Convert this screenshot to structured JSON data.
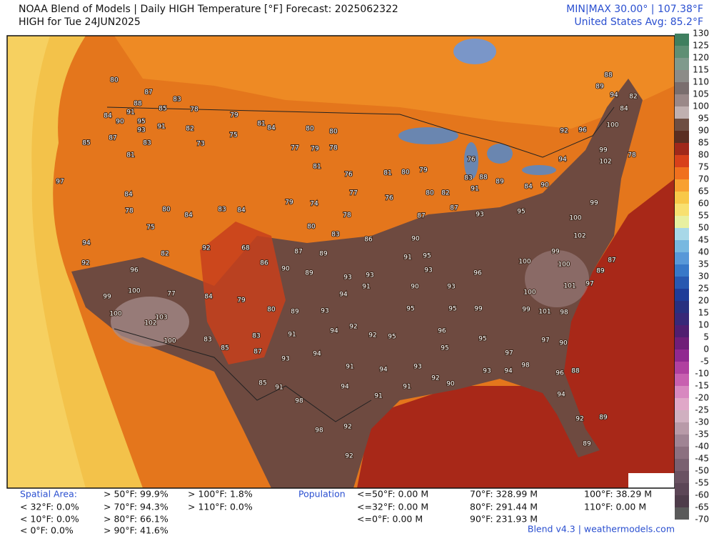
{
  "header": {
    "title": "NOAA Blend of Models | Daily HIGH Temperature [°F] Forecast: 2025062322",
    "subtitle": "HIGH for Tue 24JUN2025",
    "minmax": "MIN|MAX 30.00° | 107.38°F",
    "average": "United States Avg: 85.2°F"
  },
  "colorbar": {
    "ticks": [
      130,
      125,
      120,
      115,
      110,
      105,
      100,
      95,
      90,
      85,
      80,
      75,
      70,
      65,
      60,
      55,
      50,
      45,
      40,
      35,
      30,
      25,
      20,
      15,
      10,
      5,
      0,
      -5,
      -10,
      -15,
      -20,
      -25,
      -30,
      -35,
      -40,
      -45,
      -50,
      -55,
      -60,
      -65,
      -70
    ],
    "colors": [
      "#3f7f5f",
      "#5e8f74",
      "#7f9a8c",
      "#8c8c88",
      "#7a6e6e",
      "#9a8888",
      "#c0b0b0",
      "#6e4e42",
      "#5a2e22",
      "#a0281a",
      "#d8401a",
      "#f0701e",
      "#f8a030",
      "#f8c848",
      "#f8e070",
      "#e8f0a0",
      "#a8d8e8",
      "#78b8e0",
      "#5898d8",
      "#3878c8",
      "#2858b0",
      "#1e3c98",
      "#283080",
      "#382878",
      "#501e70",
      "#701e78",
      "#902890",
      "#b040a0",
      "#c860b0",
      "#d888c0",
      "#e0a8c8",
      "#d0b0c0",
      "#b89aa8",
      "#a08494",
      "#8c7080",
      "#7a6070",
      "#6a5262",
      "#5c4656",
      "#4e3c4a",
      "#5a5a5a"
    ]
  },
  "stations": {
    "values": [
      80,
      87,
      83,
      88,
      91,
      85,
      78,
      84,
      90,
      95,
      91,
      93,
      82,
      79,
      81,
      84,
      87,
      81,
      83,
      73,
      75,
      85,
      97,
      84,
      78,
      80,
      84,
      75,
      83,
      84,
      82,
      92,
      68,
      86,
      94,
      92,
      96,
      100,
      99,
      77,
      84,
      79,
      100,
      103,
      102,
      100,
      83,
      85,
      83,
      87,
      80,
      89,
      91,
      93,
      94,
      85,
      91,
      98,
      98,
      92,
      92,
      94,
      91,
      91,
      80,
      80,
      77,
      79,
      78,
      81,
      76,
      77,
      79,
      74,
      78,
      80,
      83,
      86,
      87,
      89,
      90,
      89,
      93,
      93,
      91,
      93,
      95,
      90,
      80,
      82,
      87,
      76,
      81,
      80,
      79,
      76,
      83,
      88,
      91,
      89,
      84,
      90,
      94,
      95,
      93,
      87,
      91,
      90,
      94,
      93,
      92,
      94,
      92,
      95,
      95,
      91,
      94,
      93,
      92,
      90,
      93,
      94,
      95,
      97,
      95,
      96,
      95,
      99,
      93,
      96,
      100,
      99,
      102,
      100,
      100,
      101,
      97,
      101,
      98,
      99,
      97,
      90,
      98,
      96,
      88,
      94,
      92,
      89,
      89,
      87,
      89,
      92,
      96,
      99,
      100,
      102,
      99,
      100,
      78,
      82,
      94,
      89,
      88,
      84
    ]
  },
  "spatial_area": {
    "label": "Spatial Area:",
    "items": [
      "> 50°F: 99.9%",
      "> 100°F: 1.8%",
      "< 32°F: 0.0%",
      "> 70°F: 94.3%",
      "> 110°F: 0.0%",
      "< 10°F: 0.0%",
      "> 80°F: 66.1%",
      "< 0°F: 0.0%",
      "> 90°F: 41.6%"
    ]
  },
  "population": {
    "label": "Population",
    "items": [
      "<=50°F: 0.00 M",
      "70°F: 328.99 M",
      "100°F: 38.29 M",
      "<=32°F: 0.00 M",
      "80°F: 291.44 M",
      "110°F: 0.00 M",
      "<=0°F: 0.00 M",
      "90°F: 231.93 M"
    ]
  },
  "footer": "Blend v4.3 | weathermodels.com"
}
